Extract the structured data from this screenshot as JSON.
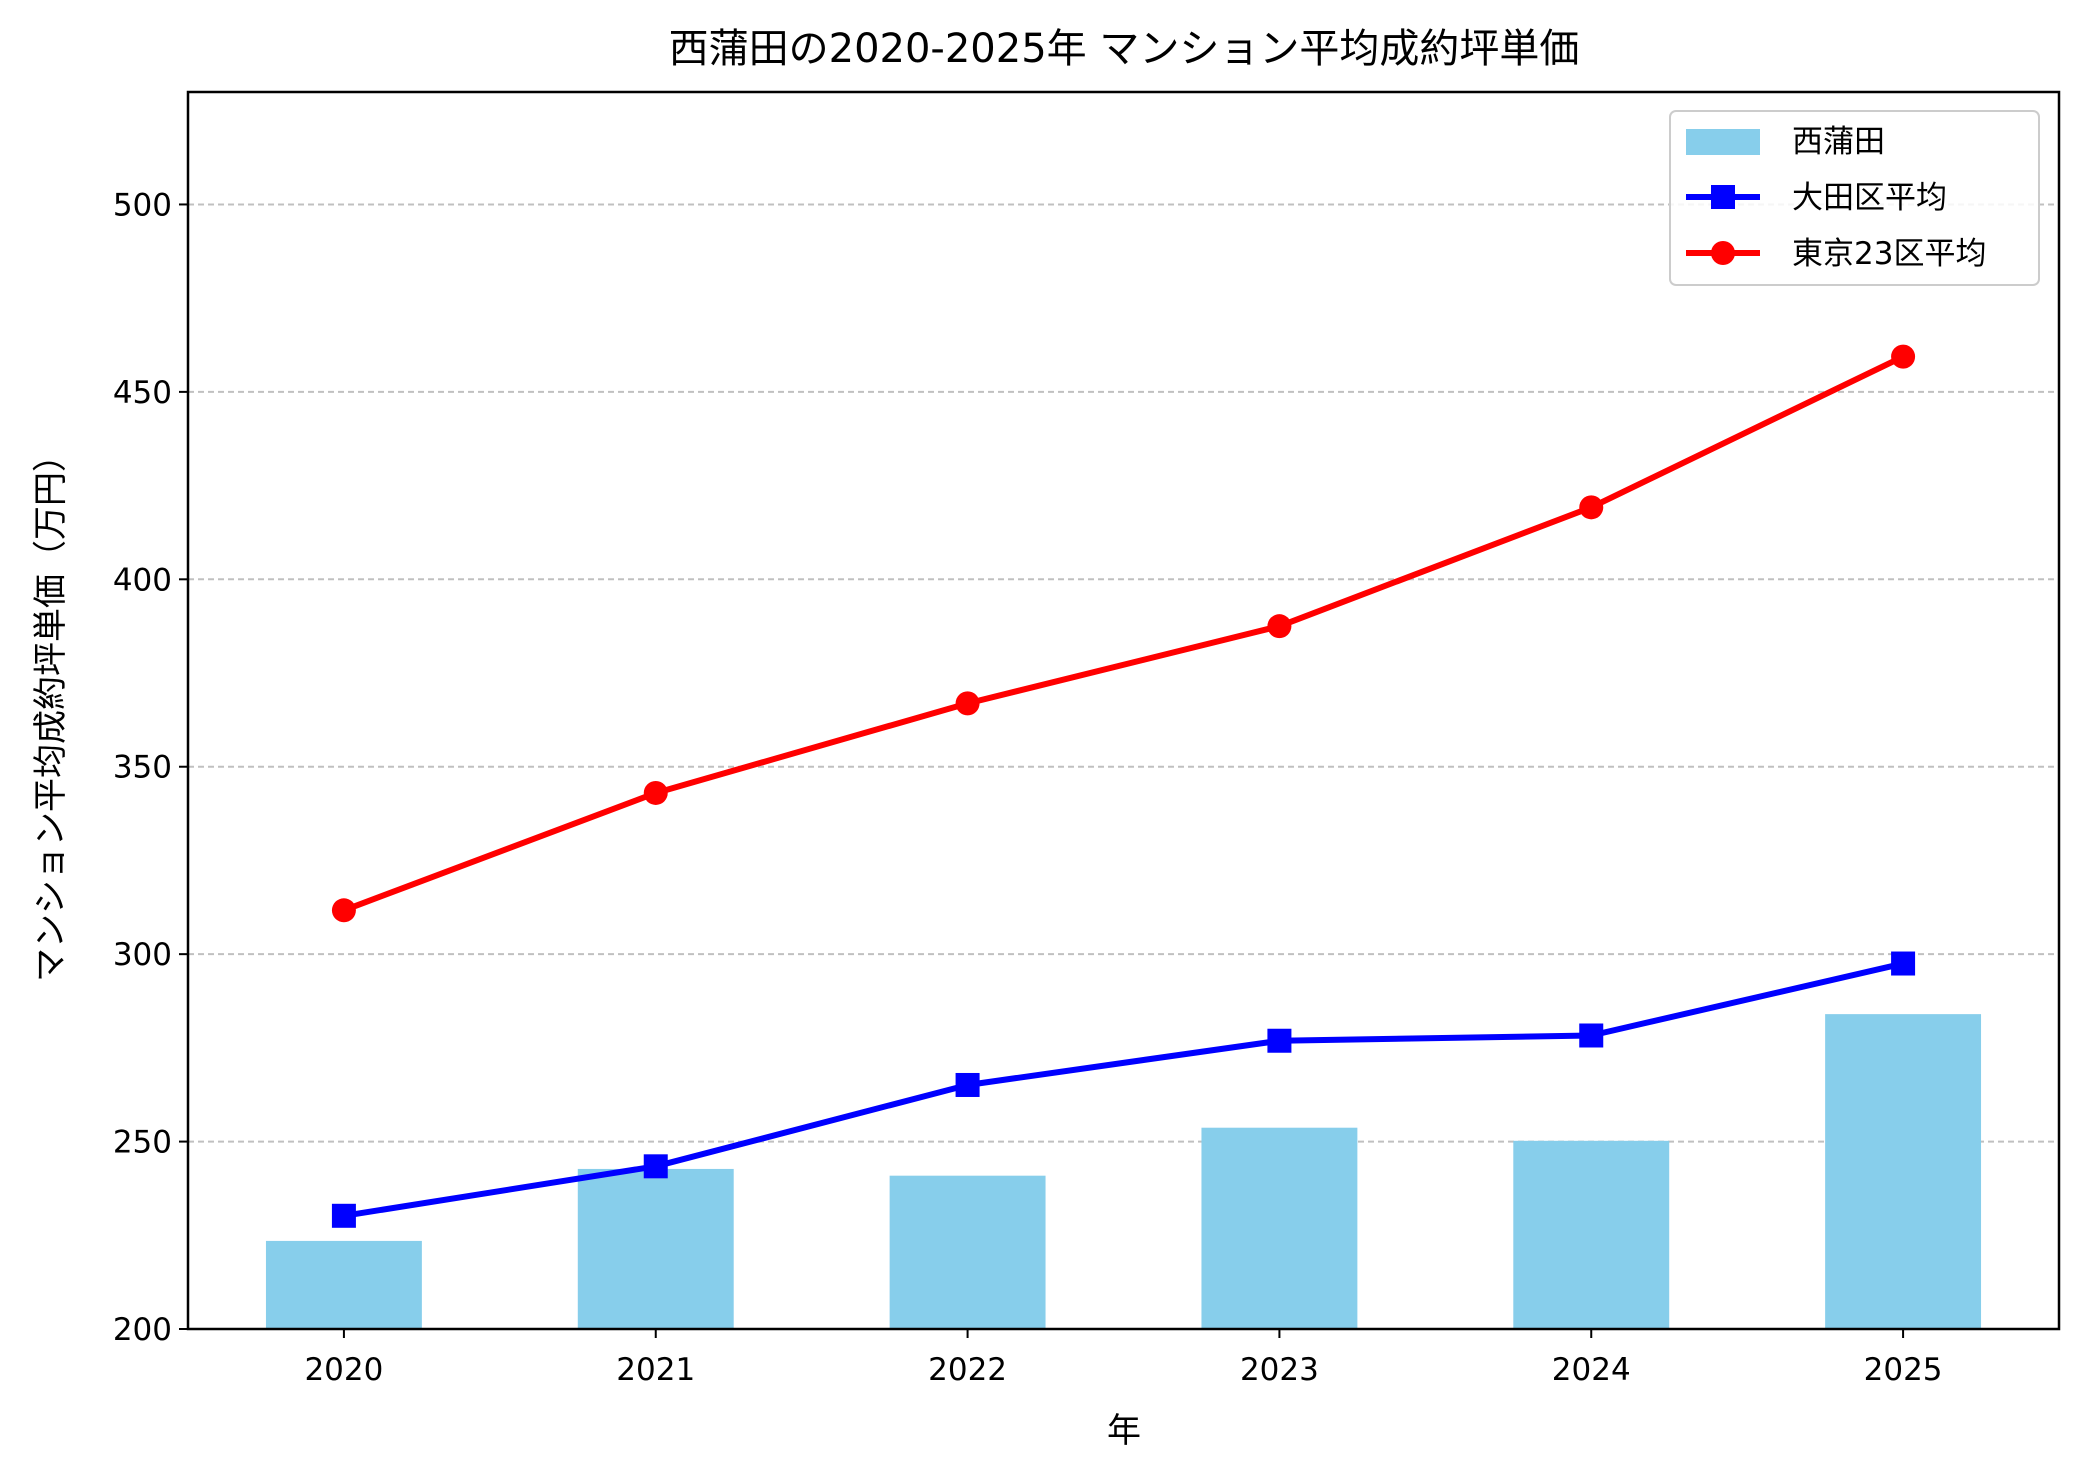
{
  "chart_data": {
    "type": "bar+line",
    "title": "西蒲田の2020-2025年 マンション平均成約坪単価",
    "xlabel": "年",
    "ylabel": "マンション平均成約坪単価（万円）",
    "categories": [
      "2020",
      "2021",
      "2022",
      "2023",
      "2024",
      "2025"
    ],
    "ylim": [
      200,
      530
    ],
    "yticks": [
      200,
      250,
      300,
      350,
      400,
      450,
      500
    ],
    "grid": "y-dashed",
    "legend": "top-right",
    "series": [
      {
        "name": "西蒲田",
        "kind": "bar",
        "color": "#87ceeb",
        "values": [
          223.5,
          242.7,
          240.9,
          253.7,
          250.2,
          284.0
        ]
      },
      {
        "name": "大田区平均",
        "kind": "line",
        "marker": "square",
        "color": "#0000ff",
        "values": [
          230.2,
          243.4,
          265.1,
          276.9,
          278.3,
          297.5
        ]
      },
      {
        "name": "東京23区平均",
        "kind": "line",
        "marker": "circle",
        "color": "#ff0000",
        "values": [
          311.7,
          343.0,
          366.9,
          387.5,
          419.2,
          459.4
        ]
      }
    ]
  }
}
